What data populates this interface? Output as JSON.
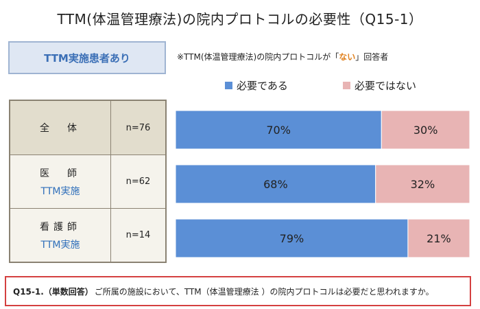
{
  "title": "TTM(体温管理療法)の院内プロトコルの必要性（Q15-1）",
  "group_badge": "TTM実施患者あり",
  "note": {
    "prefix": "※TTM(体温管理療法)の院内プロトコルが「",
    "highlight": "ない",
    "suffix": "」回答者"
  },
  "question": {
    "label": "Q15-1.（単数回答）",
    "text": "ご所属の施設において、TTM（体温管理療法 ）の院内プロトコルは必要だと思われますか。"
  },
  "colors": {
    "necessary": "#5b8fd6",
    "not_necessary": "#e8b4b4",
    "question_border": "#d43f3f",
    "highlight": "#e0801d"
  },
  "chart_data": {
    "type": "bar",
    "orientation": "horizontal",
    "stacked": true,
    "unit": "%",
    "legend": [
      "必要である",
      "必要ではない"
    ],
    "rows": [
      {
        "label": "全　体",
        "sublabel": "",
        "n": "n=76"
      },
      {
        "label": "医　師",
        "sublabel": "TTM実施",
        "n": "n=62"
      },
      {
        "label": "看護師",
        "sublabel": "TTM実施",
        "n": "n=14"
      }
    ],
    "series": [
      {
        "name": "必要である",
        "values": [
          70,
          68,
          79
        ]
      },
      {
        "name": "必要ではない",
        "values": [
          30,
          32,
          21
        ]
      }
    ],
    "value_labels": [
      [
        "70%",
        "68%",
        "79%"
      ],
      [
        "30%",
        "32%",
        "21%"
      ]
    ],
    "xlim": [
      0,
      100
    ]
  }
}
